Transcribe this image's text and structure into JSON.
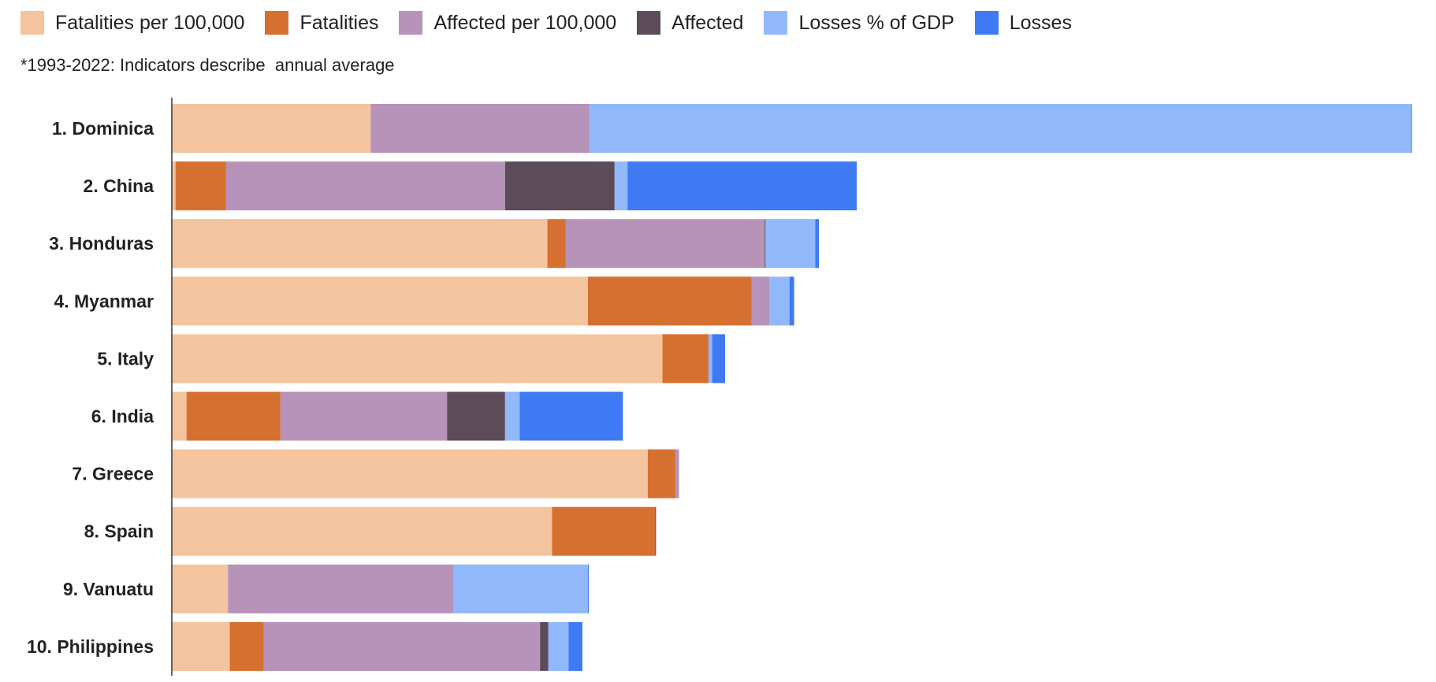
{
  "chart_data": {
    "type": "bar",
    "orientation": "horizontal",
    "stacked": true,
    "note": "*1993-2022: Indicators describe  annual average",
    "legend_position": "top-left",
    "grid": false,
    "categories": [
      "1. Dominica",
      "2. China",
      "3. Honduras",
      "4. Myanmar",
      "5. Italy",
      "6. India",
      "7. Greece",
      "8. Spain",
      "9. Vanuatu",
      "10. Philippines"
    ],
    "series": [
      {
        "name": "Fatalities per 100,000",
        "color": "#f3c49d",
        "values": [
          216,
          4,
          408,
          452,
          533,
          16,
          517,
          413,
          61,
          63
        ]
      },
      {
        "name": "Fatalities",
        "color": "#d67030",
        "values": [
          0,
          55,
          20,
          178,
          50,
          102,
          30,
          112,
          0,
          37
        ]
      },
      {
        "name": "Affected per 100,000",
        "color": "#b793ba",
        "values": [
          238,
          303,
          216,
          19,
          0,
          181,
          4,
          0,
          245,
          300
        ]
      },
      {
        "name": "Affected",
        "color": "#5c4b58",
        "values": [
          0,
          119,
          1,
          0,
          0,
          63,
          0,
          1,
          0,
          9
        ]
      },
      {
        "name": "Losses % of GDP",
        "color": "#91b8fb",
        "values": [
          892,
          14,
          54,
          22,
          4,
          16,
          0,
          0,
          146,
          22
        ]
      },
      {
        "name": "Losses",
        "color": "#3d7af3",
        "values": [
          1,
          249,
          4,
          5,
          14,
          112,
          0,
          0,
          1,
          15
        ]
      }
    ]
  }
}
